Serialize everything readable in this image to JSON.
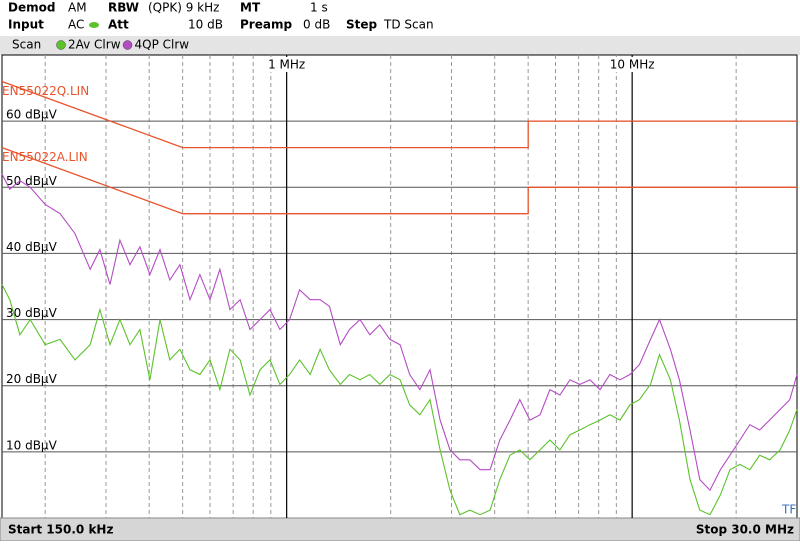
{
  "chart_data": {
    "type": "line",
    "settings": [
      {
        "label": "Demod",
        "value": "AM"
      },
      {
        "label": "RBW",
        "value": "(QPK) 9 kHz"
      },
      {
        "label": "MT",
        "value": "1 s"
      },
      {
        "label": "Input",
        "value": "AC"
      },
      {
        "label": "Att",
        "value": "10 dB"
      },
      {
        "label": "Preamp",
        "value": "0 dB"
      },
      {
        "label": "Step",
        "value": "TD Scan"
      }
    ],
    "legend_title": "Scan",
    "start_label": "Start 150.0 kHz",
    "stop_label": "Stop 30.0 MHz",
    "marker_text": "TF",
    "xscale": "log",
    "xlim": [
      0.15,
      30
    ],
    "xticks": [
      {
        "value": 1,
        "label": "1 MHz"
      },
      {
        "value": 10,
        "label": "10 MHz"
      }
    ],
    "minor_xticks": [
      0.2,
      0.3,
      0.4,
      0.5,
      0.6,
      0.7,
      0.8,
      0.9,
      2,
      3,
      4,
      5,
      6,
      7,
      8,
      9,
      20
    ],
    "ylim": [
      0,
      70
    ],
    "yticks": [
      {
        "value": 10,
        "label": "10 dBµV"
      },
      {
        "value": 20,
        "label": "20 dBµV"
      },
      {
        "value": 30,
        "label": "30 dBµV"
      },
      {
        "value": 40,
        "label": "40 dBµV"
      },
      {
        "value": 50,
        "label": "50 dBµV"
      },
      {
        "value": 60,
        "label": "60 dBµV"
      }
    ],
    "grid": true,
    "limit_lines": [
      {
        "name": "EN55022Q.LIN",
        "color": "#e8542c",
        "x": [
          0.15,
          0.5,
          5,
          5,
          30
        ],
        "values": [
          66,
          56,
          56,
          60,
          60
        ]
      },
      {
        "name": "EN55022A.LIN",
        "color": "#e8542c",
        "x": [
          0.15,
          0.5,
          5,
          5,
          30
        ],
        "values": [
          56,
          46,
          46,
          50,
          50
        ]
      }
    ],
    "x": [
      0.15,
      0.158,
      0.169,
      0.181,
      0.2,
      0.221,
      0.244,
      0.27,
      0.288,
      0.308,
      0.329,
      0.352,
      0.376,
      0.402,
      0.43,
      0.459,
      0.491,
      0.525,
      0.561,
      0.6,
      0.641,
      0.685,
      0.733,
      0.783,
      0.837,
      0.895,
      0.956,
      1.02,
      1.09,
      1.17,
      1.25,
      1.33,
      1.43,
      1.52,
      1.63,
      1.74,
      1.86,
      1.99,
      2.13,
      2.27,
      2.43,
      2.6,
      2.78,
      2.97,
      3.17,
      3.39,
      3.63,
      3.88,
      4.14,
      4.43,
      4.73,
      5.06,
      5.41,
      5.78,
      6.18,
      6.61,
      7.06,
      7.55,
      8.07,
      8.62,
      9.22,
      9.85,
      10.5,
      11.3,
      12.0,
      12.9,
      13.7,
      14.7,
      15.7,
      16.8,
      18.0,
      19.2,
      20.5,
      21.9,
      23.4,
      25.0,
      26.8,
      28.6,
      30.0
    ],
    "series": [
      {
        "name": "2Av Clrw",
        "color": "#5cc22c",
        "values": [
          35.3,
          33,
          27.7,
          30,
          26.2,
          27,
          23.9,
          26.2,
          31.5,
          26.2,
          30,
          26.2,
          28.5,
          20.9,
          30,
          23.9,
          25.5,
          22.4,
          21.7,
          23.9,
          19.4,
          25.5,
          23.9,
          18.6,
          22.4,
          23.9,
          20.2,
          21.7,
          23.9,
          21.7,
          25.5,
          22.4,
          20.2,
          21.7,
          20.9,
          21.7,
          20.2,
          21.7,
          20.9,
          17.1,
          15.6,
          17.9,
          10.3,
          4.2,
          0.5,
          1.2,
          0.5,
          1.2,
          5.8,
          9.5,
          10.3,
          8.8,
          10.3,
          11.8,
          10.3,
          12.6,
          13.3,
          14.1,
          14.8,
          15.6,
          14.8,
          17.1,
          17.9,
          20.2,
          24.7,
          20.9,
          14.8,
          5.8,
          1.2,
          0.5,
          3.5,
          7.3,
          8.1,
          7.3,
          9.5,
          8.8,
          10.3,
          13.3,
          16.4
        ]
      },
      {
        "name": "4QP Clrw",
        "color": "#b44cc4",
        "values": [
          52,
          49.7,
          51,
          50,
          47.4,
          46,
          43,
          37.6,
          40.6,
          35.3,
          42,
          38.3,
          41,
          36.8,
          40.6,
          36,
          38.3,
          33,
          36.8,
          33,
          37.6,
          31.5,
          33,
          28.5,
          30,
          31.5,
          28.5,
          30,
          34.5,
          33,
          33,
          32,
          26.2,
          28.5,
          30,
          27.7,
          29.2,
          27,
          26.2,
          21.7,
          19.4,
          22.4,
          14.8,
          10.3,
          8.8,
          8.8,
          7.3,
          7.3,
          11.8,
          14.8,
          17.9,
          14.8,
          15.6,
          19.4,
          18.6,
          20.9,
          20.2,
          20.9,
          19.4,
          21.7,
          20.9,
          21.7,
          23.2,
          27,
          30,
          25.5,
          20.9,
          13.3,
          5.8,
          4.2,
          7.3,
          9.5,
          11.8,
          14.1,
          13.3,
          14.8,
          16.4,
          17.9,
          21.7
        ]
      }
    ]
  }
}
